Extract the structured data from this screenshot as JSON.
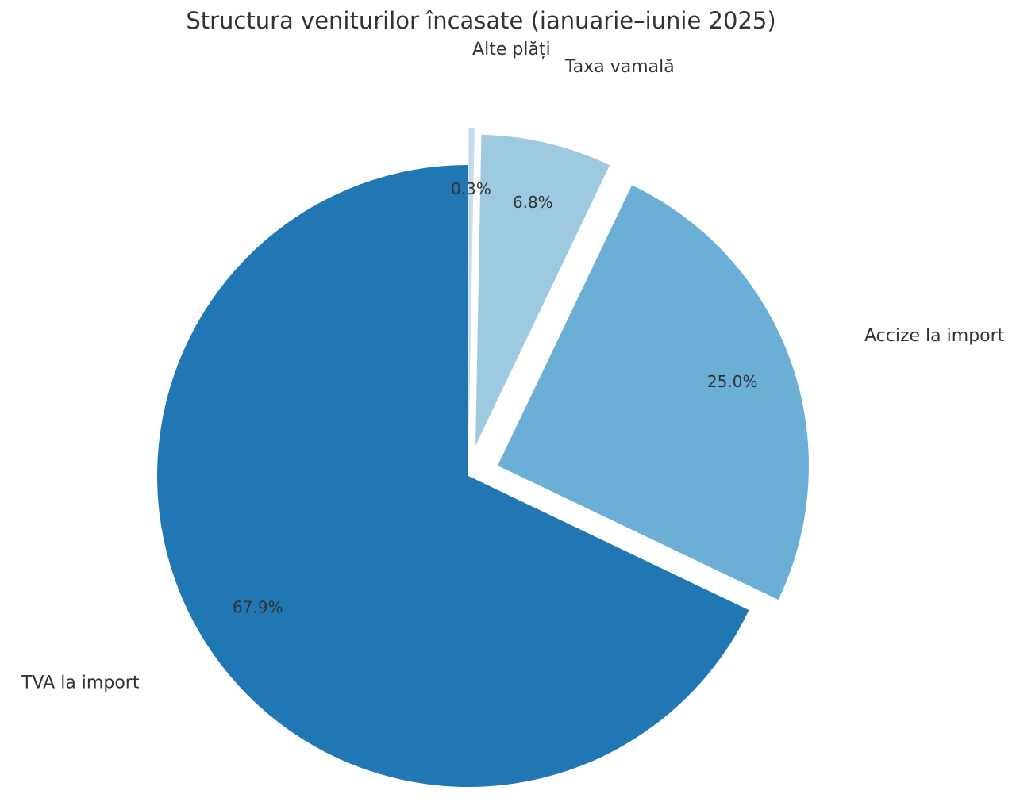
{
  "chart_data": {
    "type": "pie",
    "title": "Structura veniturilor încasate (ianuarie–iunie 2025)",
    "categories": [
      "TVA la import",
      "Accize la import",
      "Taxa vamală",
      "Alte plăți"
    ],
    "values": [
      67.9,
      25.0,
      6.8,
      0.3
    ],
    "value_labels": [
      "67.9%",
      "25.0%",
      "6.8%",
      "0.3%"
    ],
    "colors": [
      "#2077b4",
      "#6baed6",
      "#9ecae1",
      "#c6dbef"
    ]
  }
}
